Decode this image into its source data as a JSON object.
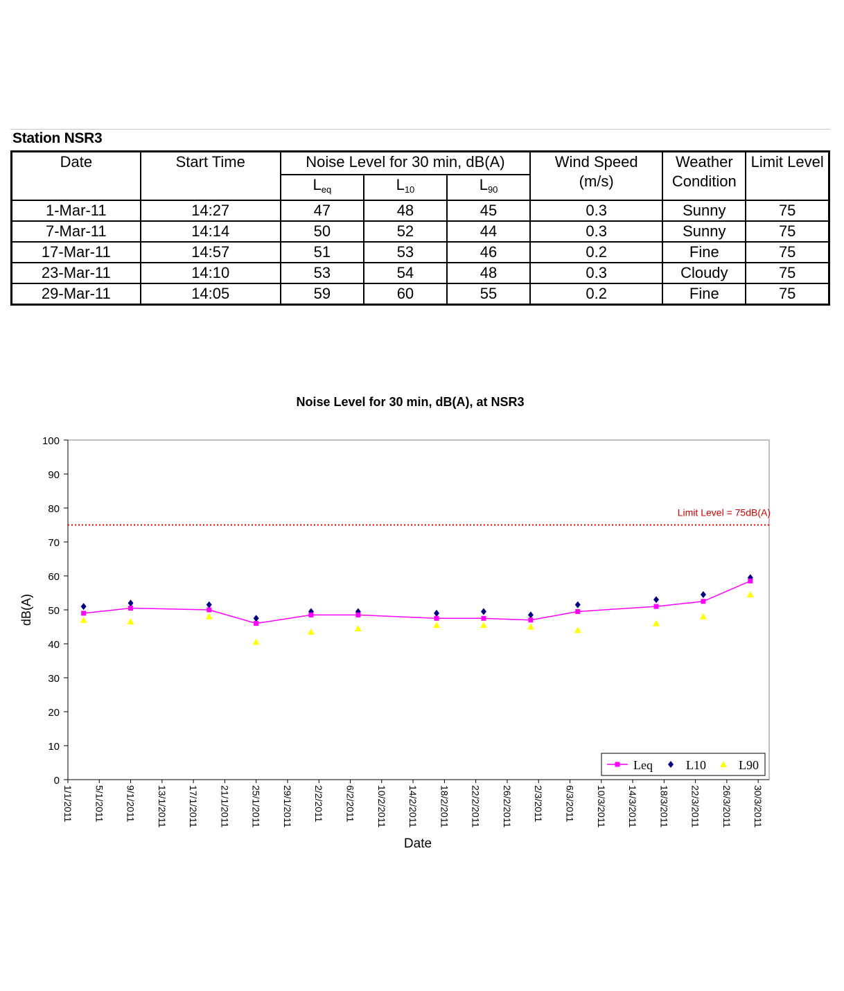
{
  "station_title": "Station NSR3",
  "table": {
    "headers": {
      "date": "Date",
      "start_time": "Start Time",
      "noise_level": "Noise Level for 30 min, dB(A)",
      "leq": {
        "main": "L",
        "sub": "eq"
      },
      "l10": {
        "main": "L",
        "sub": "10"
      },
      "l90": {
        "main": "L",
        "sub": "90"
      },
      "wind_speed_1": "Wind Speed",
      "wind_speed_2": "(m/s)",
      "weather_1": "Weather",
      "weather_2": "Condition",
      "limit": "Limit Level"
    },
    "rows": [
      {
        "date": "1-Mar-11",
        "time": "14:27",
        "leq": "47",
        "l10": "48",
        "l90": "45",
        "wind": "0.3",
        "weather": "Sunny",
        "limit": "75"
      },
      {
        "date": "7-Mar-11",
        "time": "14:14",
        "leq": "50",
        "l10": "52",
        "l90": "44",
        "wind": "0.3",
        "weather": "Sunny",
        "limit": "75"
      },
      {
        "date": "17-Mar-11",
        "time": "14:57",
        "leq": "51",
        "l10": "53",
        "l90": "46",
        "wind": "0.2",
        "weather": "Fine",
        "limit": "75"
      },
      {
        "date": "23-Mar-11",
        "time": "14:10",
        "leq": "53",
        "l10": "54",
        "l90": "48",
        "wind": "0.3",
        "weather": "Cloudy",
        "limit": "75"
      },
      {
        "date": "29-Mar-11",
        "time": "14:05",
        "leq": "59",
        "l10": "60",
        "l90": "55",
        "wind": "0.2",
        "weather": "Fine",
        "limit": "75"
      }
    ]
  },
  "chart_data": {
    "type": "line",
    "title": "Noise Level for 30 min, dB(A), at NSR3",
    "xlabel": "Date",
    "ylabel": "dB(A)",
    "ylim": [
      0,
      100
    ],
    "yticks": [
      0,
      10,
      20,
      30,
      40,
      50,
      60,
      70,
      80,
      90,
      100
    ],
    "xlim": [
      "2011-01-01",
      "2011-03-30"
    ],
    "xtick_labels": [
      "1/1/2011",
      "5/1/2011",
      "9/1/2011",
      "13/1/2011",
      "17/1/2011",
      "21/1/2011",
      "25/1/2011",
      "29/1/2011",
      "2/2/2011",
      "6/2/2011",
      "10/2/2011",
      "14/2/2011",
      "18/2/2011",
      "22/2/2011",
      "26/2/2011",
      "2/3/2011",
      "6/3/2011",
      "10/3/2011",
      "14/3/2011",
      "18/3/2011",
      "22/3/2011",
      "26/3/2011",
      "30/3/2011"
    ],
    "x": [
      "2011-01-03",
      "2011-01-09",
      "2011-01-19",
      "2011-01-25",
      "2011-02-01",
      "2011-02-07",
      "2011-02-17",
      "2011-02-23",
      "2011-03-01",
      "2011-03-07",
      "2011-03-17",
      "2011-03-23",
      "2011-03-29"
    ],
    "series": [
      {
        "name": "Leq",
        "style": "line-square",
        "color": "#ff00ff",
        "values": [
          49,
          50.5,
          50,
          46,
          48.5,
          48.5,
          47.5,
          47.5,
          47,
          49.5,
          51,
          52.5,
          58.5
        ]
      },
      {
        "name": "L10",
        "style": "diamond",
        "color": "#000080",
        "values": [
          51,
          52,
          51.5,
          47.5,
          49.5,
          49.5,
          49,
          49.5,
          48.5,
          51.5,
          53,
          54.5,
          59.5
        ]
      },
      {
        "name": "L90",
        "style": "triangle",
        "color": "#ffff00",
        "values": [
          47,
          46.5,
          48,
          40.5,
          43.5,
          44.5,
          45.5,
          45.5,
          45,
          44,
          46,
          48,
          54.5
        ]
      }
    ],
    "limit_line": {
      "value": 75,
      "label": "Limit Level = 75dB(A)",
      "color": "#ff0000"
    },
    "legend_position": "bottom-right",
    "grid": false
  }
}
